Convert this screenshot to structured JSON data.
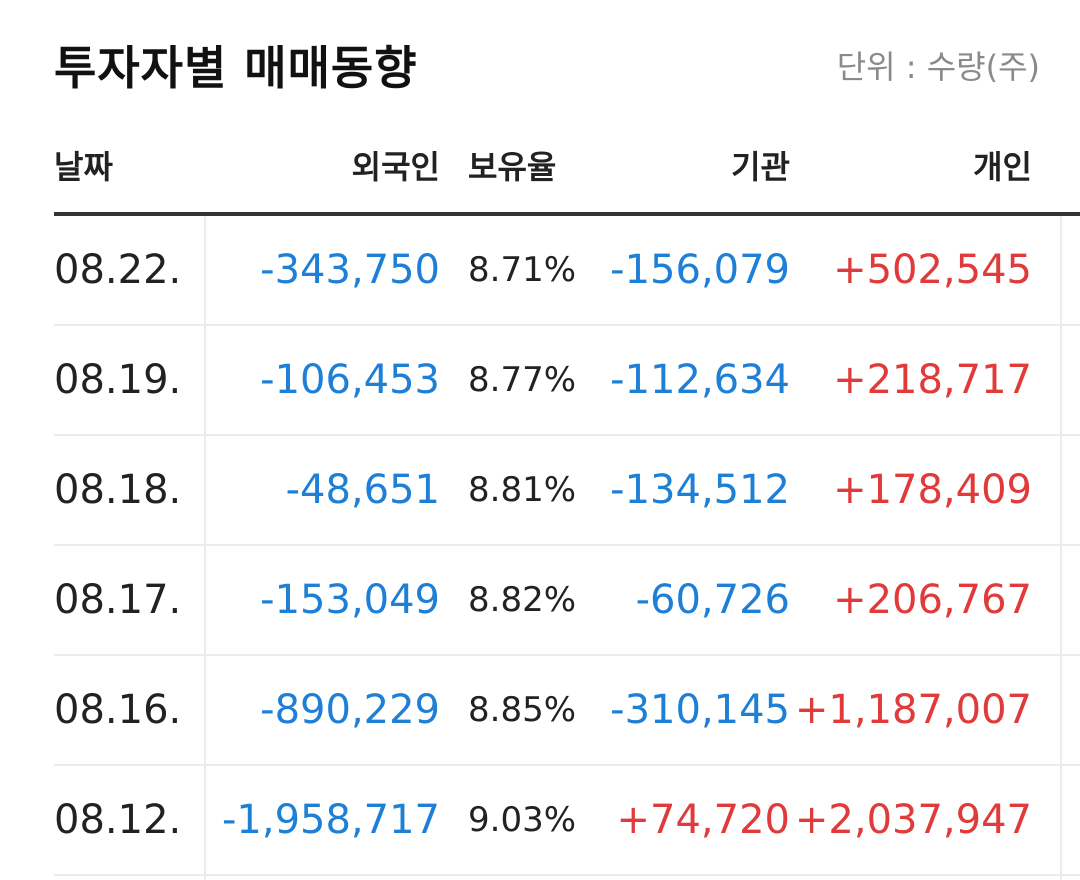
{
  "header": {
    "title": "투자자별 매매동향",
    "unit": "단위 : 수량(주)"
  },
  "columns": {
    "date": "날짜",
    "foreign": "외국인",
    "ratio": "보유율",
    "institution": "기관",
    "individual": "개인"
  },
  "rows": [
    {
      "date": "08.22.",
      "foreign": "-343,750",
      "ratio": "8.71%",
      "institution": "-156,079",
      "individual": "+502,545"
    },
    {
      "date": "08.19.",
      "foreign": "-106,453",
      "ratio": "8.77%",
      "institution": "-112,634",
      "individual": "+218,717"
    },
    {
      "date": "08.18.",
      "foreign": "-48,651",
      "ratio": "8.81%",
      "institution": "-134,512",
      "individual": "+178,409"
    },
    {
      "date": "08.17.",
      "foreign": "-153,049",
      "ratio": "8.82%",
      "institution": "-60,726",
      "individual": "+206,767"
    },
    {
      "date": "08.16.",
      "foreign": "-890,229",
      "ratio": "8.85%",
      "institution": "-310,145",
      "individual": "+1,187,007"
    },
    {
      "date": "08.12.",
      "foreign": "-1,958,717",
      "ratio": "9.03%",
      "institution": "+74,720",
      "individual": "+2,037,947"
    }
  ],
  "colors": {
    "negative": "#1e7fd6",
    "positive": "#e03a3a",
    "text": "#222222",
    "muted": "#8a8a8a"
  }
}
